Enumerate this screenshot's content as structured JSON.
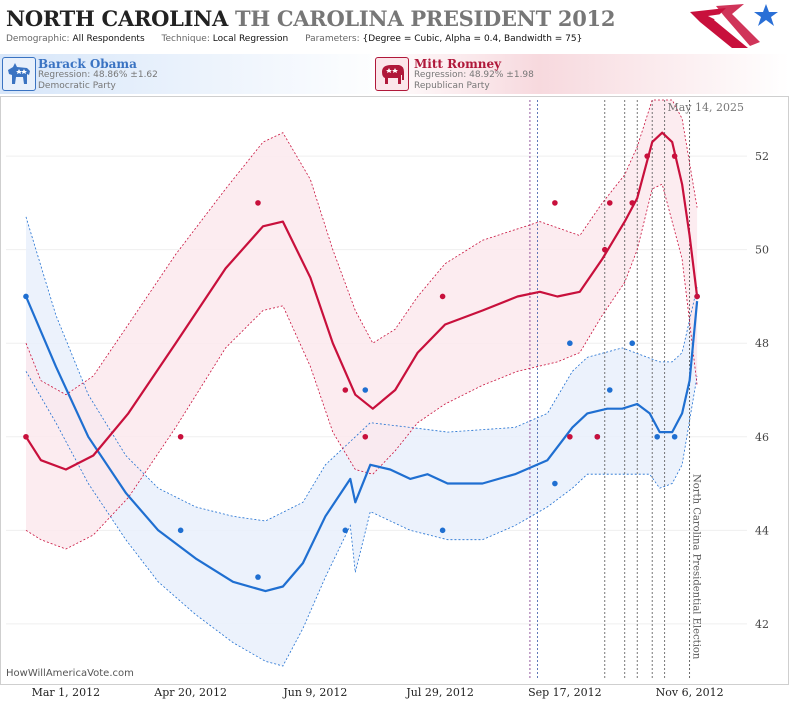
{
  "header": {
    "title_main": "NORTH CAROLINA",
    "title_sub": "TH CAROLINA PRESIDENT 2012",
    "demographic_label": "Demographic:",
    "demographic_value": "All Respondents",
    "technique_label": "Technique:",
    "technique_value": "Local Regression",
    "parameters_label": "Parameters:",
    "parameters_value": "{Degree = Cubic, Alpha = 0.4, Bandwidth = 75}"
  },
  "candidates": {
    "dem": {
      "name": "Barack Obama",
      "regression": "Regression: 48.86% ±1.62",
      "party": "Democratic Party",
      "color": "#1f6fd1"
    },
    "rep": {
      "name": "Mitt Romney",
      "regression": "Regression: 48.92% ±1.98",
      "party": "Republican Party",
      "color": "#c8103c"
    }
  },
  "watermark": "HowWillAmericaVote.com",
  "chart_data": {
    "type": "line",
    "date_label": "May 14, 2025",
    "event_label": "North Carolina Presidential Election",
    "event_date": "2012-11-06",
    "xlim": [
      "2012-02-06",
      "2012-11-29"
    ],
    "ylim": [
      40.8,
      53.2
    ],
    "x_ticks": [
      {
        "date": "2012-03-01",
        "label": "Mar 1, 2012"
      },
      {
        "date": "2012-04-20",
        "label": "Apr 20, 2012"
      },
      {
        "date": "2012-06-09",
        "label": "Jun 9, 2012"
      },
      {
        "date": "2012-07-29",
        "label": "Jul 29, 2012"
      },
      {
        "date": "2012-09-17",
        "label": "Sep 17, 2012"
      },
      {
        "date": "2012-11-06",
        "label": "Nov 6, 2012"
      }
    ],
    "y_ticks": [
      {
        "value": 42,
        "label": "42"
      },
      {
        "value": 44,
        "label": "44"
      },
      {
        "value": 46,
        "label": "46"
      },
      {
        "value": 48,
        "label": "48"
      },
      {
        "value": 50,
        "label": "50"
      },
      {
        "value": 52,
        "label": "52"
      }
    ],
    "vlines": [
      {
        "date": "2012-09-03",
        "color": "#7a2d86"
      },
      {
        "date": "2012-09-06",
        "color": "#3a5aa8"
      },
      {
        "date": "2012-10-03",
        "color": "#555555"
      },
      {
        "date": "2012-10-11",
        "color": "#555555"
      },
      {
        "date": "2012-10-16",
        "color": "#555555"
      },
      {
        "date": "2012-10-22",
        "color": "#555555"
      },
      {
        "date": "2012-10-27",
        "color": "#555555"
      }
    ],
    "series": [
      {
        "name": "Barack Obama",
        "color": "#1f6fd1",
        "band_color": "#e9f0fb",
        "points": [
          [
            "2012-02-14",
            49
          ],
          [
            "2012-04-16",
            44
          ],
          [
            "2012-05-17",
            43
          ],
          [
            "2012-06-21",
            44
          ],
          [
            "2012-06-29",
            47
          ],
          [
            "2012-07-30",
            44
          ],
          [
            "2012-09-13",
            45
          ],
          [
            "2012-09-19",
            48
          ],
          [
            "2012-09-30",
            46
          ],
          [
            "2012-10-05",
            47
          ],
          [
            "2012-10-14",
            48
          ],
          [
            "2012-10-24",
            46
          ],
          [
            "2012-10-31",
            46
          ],
          [
            "2012-11-09",
            49
          ]
        ],
        "line": [
          [
            "2012-02-14",
            49.0
          ],
          [
            "2012-02-26",
            47.5
          ],
          [
            "2012-03-10",
            46.0
          ],
          [
            "2012-03-25",
            44.8
          ],
          [
            "2012-04-07",
            44.0
          ],
          [
            "2012-04-22",
            43.4
          ],
          [
            "2012-05-07",
            42.9
          ],
          [
            "2012-05-20",
            42.7
          ],
          [
            "2012-05-27",
            42.8
          ],
          [
            "2012-06-04",
            43.3
          ],
          [
            "2012-06-13",
            44.3
          ],
          [
            "2012-06-23",
            45.1
          ],
          [
            "2012-06-25",
            44.6
          ],
          [
            "2012-07-01",
            45.4
          ],
          [
            "2012-07-09",
            45.3
          ],
          [
            "2012-07-17",
            45.1
          ],
          [
            "2012-07-24",
            45.2
          ],
          [
            "2012-08-01",
            45.0
          ],
          [
            "2012-08-15",
            45.0
          ],
          [
            "2012-08-28",
            45.2
          ],
          [
            "2012-09-10",
            45.5
          ],
          [
            "2012-09-20",
            46.2
          ],
          [
            "2012-09-26",
            46.5
          ],
          [
            "2012-10-04",
            46.6
          ],
          [
            "2012-10-10",
            46.6
          ],
          [
            "2012-10-16",
            46.7
          ],
          [
            "2012-10-21",
            46.5
          ],
          [
            "2012-10-25",
            46.1
          ],
          [
            "2012-10-30",
            46.1
          ],
          [
            "2012-11-03",
            46.5
          ],
          [
            "2012-11-06",
            47.2
          ],
          [
            "2012-11-09",
            48.9
          ]
        ],
        "upper": [
          [
            "2012-02-14",
            50.7
          ],
          [
            "2012-02-26",
            48.6
          ],
          [
            "2012-03-10",
            46.9
          ],
          [
            "2012-03-25",
            45.6
          ],
          [
            "2012-04-07",
            44.9
          ],
          [
            "2012-04-22",
            44.5
          ],
          [
            "2012-05-07",
            44.3
          ],
          [
            "2012-05-20",
            44.2
          ],
          [
            "2012-06-04",
            44.6
          ],
          [
            "2012-06-13",
            45.4
          ],
          [
            "2012-06-23",
            45.9
          ],
          [
            "2012-07-01",
            46.3
          ],
          [
            "2012-07-17",
            46.2
          ],
          [
            "2012-08-01",
            46.1
          ],
          [
            "2012-08-28",
            46.2
          ],
          [
            "2012-09-10",
            46.5
          ],
          [
            "2012-09-20",
            47.4
          ],
          [
            "2012-09-26",
            47.7
          ],
          [
            "2012-10-10",
            47.9
          ],
          [
            "2012-10-25",
            47.6
          ],
          [
            "2012-10-30",
            47.6
          ],
          [
            "2012-11-03",
            47.8
          ],
          [
            "2012-11-09",
            49.2
          ]
        ],
        "lower": [
          [
            "2012-02-14",
            47.4
          ],
          [
            "2012-02-26",
            46.3
          ],
          [
            "2012-03-10",
            45.0
          ],
          [
            "2012-03-25",
            43.8
          ],
          [
            "2012-04-07",
            42.9
          ],
          [
            "2012-04-22",
            42.2
          ],
          [
            "2012-05-07",
            41.6
          ],
          [
            "2012-05-20",
            41.2
          ],
          [
            "2012-05-27",
            41.1
          ],
          [
            "2012-06-04",
            41.9
          ],
          [
            "2012-06-13",
            43.0
          ],
          [
            "2012-06-23",
            44.1
          ],
          [
            "2012-06-25",
            43.1
          ],
          [
            "2012-07-01",
            44.4
          ],
          [
            "2012-07-17",
            44.0
          ],
          [
            "2012-08-01",
            43.8
          ],
          [
            "2012-08-15",
            43.8
          ],
          [
            "2012-08-28",
            44.1
          ],
          [
            "2012-09-10",
            44.5
          ],
          [
            "2012-09-20",
            44.9
          ],
          [
            "2012-09-26",
            45.2
          ],
          [
            "2012-10-10",
            45.2
          ],
          [
            "2012-10-21",
            45.2
          ],
          [
            "2012-10-25",
            44.9
          ],
          [
            "2012-10-30",
            45.0
          ],
          [
            "2012-11-03",
            45.4
          ],
          [
            "2012-11-09",
            47.3
          ]
        ]
      },
      {
        "name": "Mitt Romney",
        "color": "#c8103c",
        "band_color": "#fbe9ed",
        "points": [
          [
            "2012-02-14",
            46
          ],
          [
            "2012-04-16",
            46
          ],
          [
            "2012-05-17",
            51
          ],
          [
            "2012-06-21",
            47
          ],
          [
            "2012-06-29",
            46
          ],
          [
            "2012-07-30",
            49
          ],
          [
            "2012-09-13",
            51
          ],
          [
            "2012-09-19",
            46
          ],
          [
            "2012-09-30",
            46
          ],
          [
            "2012-10-03",
            50
          ],
          [
            "2012-10-05",
            51
          ],
          [
            "2012-10-14",
            51
          ],
          [
            "2012-10-20",
            52
          ],
          [
            "2012-10-31",
            52
          ],
          [
            "2012-11-09",
            49
          ]
        ],
        "line": [
          [
            "2012-02-14",
            46.0
          ],
          [
            "2012-02-20",
            45.5
          ],
          [
            "2012-03-01",
            45.3
          ],
          [
            "2012-03-12",
            45.6
          ],
          [
            "2012-03-26",
            46.5
          ],
          [
            "2012-04-14",
            48.0
          ],
          [
            "2012-05-04",
            49.6
          ],
          [
            "2012-05-19",
            50.5
          ],
          [
            "2012-05-27",
            50.6
          ],
          [
            "2012-06-07",
            49.4
          ],
          [
            "2012-06-16",
            48.0
          ],
          [
            "2012-06-25",
            46.9
          ],
          [
            "2012-07-02",
            46.6
          ],
          [
            "2012-07-11",
            47.0
          ],
          [
            "2012-07-20",
            47.8
          ],
          [
            "2012-07-31",
            48.4
          ],
          [
            "2012-08-15",
            48.7
          ],
          [
            "2012-08-29",
            49.0
          ],
          [
            "2012-09-07",
            49.1
          ],
          [
            "2012-09-14",
            49.0
          ],
          [
            "2012-09-23",
            49.1
          ],
          [
            "2012-10-02",
            49.8
          ],
          [
            "2012-10-11",
            50.6
          ],
          [
            "2012-10-16",
            51.1
          ],
          [
            "2012-10-22",
            52.3
          ],
          [
            "2012-10-26",
            52.5
          ],
          [
            "2012-10-30",
            52.3
          ],
          [
            "2012-11-03",
            51.4
          ],
          [
            "2012-11-06",
            50.3
          ],
          [
            "2012-11-09",
            49.0
          ]
        ],
        "upper": [
          [
            "2012-02-14",
            48.0
          ],
          [
            "2012-02-20",
            47.2
          ],
          [
            "2012-03-01",
            46.9
          ],
          [
            "2012-03-12",
            47.3
          ],
          [
            "2012-03-26",
            48.4
          ],
          [
            "2012-04-14",
            49.9
          ],
          [
            "2012-05-04",
            51.3
          ],
          [
            "2012-05-19",
            52.3
          ],
          [
            "2012-05-27",
            52.5
          ],
          [
            "2012-06-07",
            51.5
          ],
          [
            "2012-06-16",
            50.0
          ],
          [
            "2012-06-25",
            48.7
          ],
          [
            "2012-07-02",
            48.0
          ],
          [
            "2012-07-11",
            48.3
          ],
          [
            "2012-07-20",
            49.0
          ],
          [
            "2012-07-31",
            49.7
          ],
          [
            "2012-08-15",
            50.2
          ],
          [
            "2012-09-07",
            50.6
          ],
          [
            "2012-09-23",
            50.3
          ],
          [
            "2012-10-02",
            51.0
          ],
          [
            "2012-10-11",
            51.6
          ],
          [
            "2012-10-16",
            52.2
          ],
          [
            "2012-10-22",
            53.2
          ],
          [
            "2012-10-30",
            53.2
          ],
          [
            "2012-11-03",
            52.8
          ],
          [
            "2012-11-09",
            50.9
          ]
        ],
        "lower": [
          [
            "2012-02-14",
            44.0
          ],
          [
            "2012-02-20",
            43.8
          ],
          [
            "2012-03-01",
            43.6
          ],
          [
            "2012-03-12",
            43.9
          ],
          [
            "2012-03-26",
            44.7
          ],
          [
            "2012-04-14",
            46.2
          ],
          [
            "2012-05-04",
            47.9
          ],
          [
            "2012-05-19",
            48.7
          ],
          [
            "2012-05-27",
            48.8
          ],
          [
            "2012-06-07",
            47.5
          ],
          [
            "2012-06-16",
            46.1
          ],
          [
            "2012-06-25",
            45.3
          ],
          [
            "2012-07-02",
            45.2
          ],
          [
            "2012-07-11",
            45.7
          ],
          [
            "2012-07-20",
            46.3
          ],
          [
            "2012-07-31",
            46.7
          ],
          [
            "2012-08-15",
            47.1
          ],
          [
            "2012-08-29",
            47.4
          ],
          [
            "2012-09-14",
            47.6
          ],
          [
            "2012-09-23",
            47.8
          ],
          [
            "2012-10-02",
            48.6
          ],
          [
            "2012-10-11",
            49.3
          ],
          [
            "2012-10-16",
            50.0
          ],
          [
            "2012-10-22",
            51.3
          ],
          [
            "2012-10-26",
            51.4
          ],
          [
            "2012-11-03",
            49.8
          ],
          [
            "2012-11-09",
            47.1
          ]
        ]
      }
    ]
  }
}
